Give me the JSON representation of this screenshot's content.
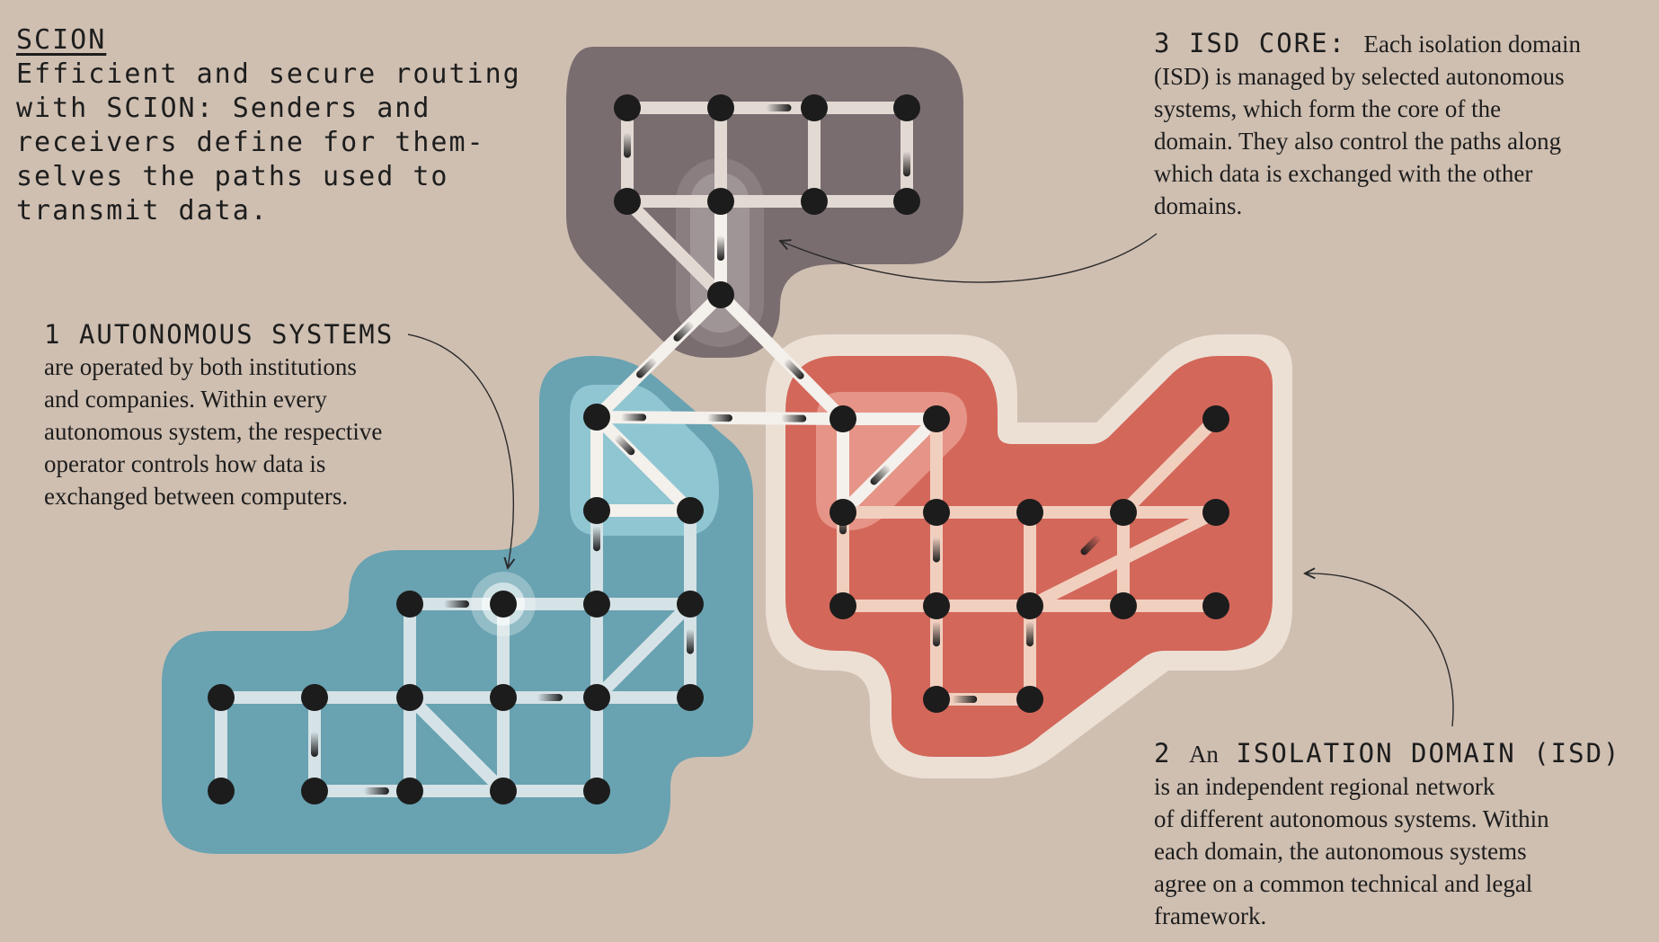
{
  "title": {
    "heading": "SCION",
    "lines": [
      "Efficient and secure routing",
      "with SCION: Senders and",
      "receivers define for them-",
      "selves the paths used to",
      "transmit data."
    ]
  },
  "annotations": {
    "autonomous_systems": {
      "number": "1",
      "heading": "AUTONOMOUS SYSTEMS",
      "lines": [
        "are operated by both institutions",
        "and companies. Within every",
        "autonomous system, the respective",
        "operator controls how data is",
        "exchanged between computers."
      ]
    },
    "isolation_domain": {
      "number": "2",
      "lead": "An",
      "heading": "ISOLATION DOMAIN (ISD)",
      "lines": [
        "is an independent regional network",
        "of different autonomous systems. Within",
        "each domain, the autonomous systems",
        "agree on a common technical and legal",
        "framework."
      ]
    },
    "isd_core": {
      "number": "3",
      "heading": "ISD CORE:",
      "first_line": "Each isolation domain",
      "lines": [
        "(ISD) is managed by selected autonomous",
        "systems, which form the core of the",
        "domain. They also control the paths along",
        "which data is exchanged with the other",
        "domains."
      ]
    }
  },
  "colors": {
    "background": "#cfbfb1",
    "core_region": "#7a6d70",
    "blue_region": "#69a2b1",
    "red_region": "#d3675a",
    "red_halo": "#ece0d5",
    "link_light": "#e2d9d3",
    "link_blue": "#d5e2e6",
    "link_red": "#f1cfbf",
    "node": "#1c1c1c"
  }
}
